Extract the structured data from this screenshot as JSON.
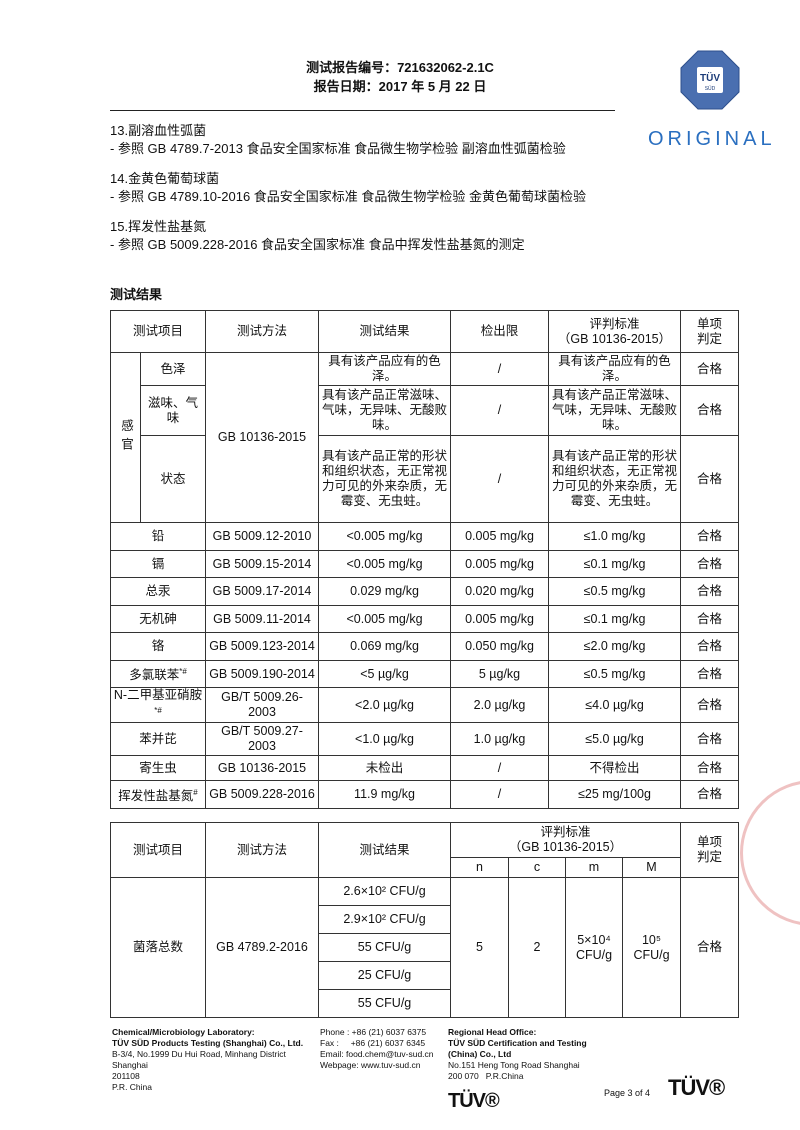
{
  "header": {
    "report_no_label": "测试报告编号：",
    "report_no": "721632062-2.1C",
    "date_label": "报告日期：",
    "date": "2017 年 5 月 22 日"
  },
  "logo": {
    "text_top": "TÜV",
    "text_bottom": "SÜD",
    "original": "ORIGINAL",
    "color": "#2a6fc0"
  },
  "methods": [
    {
      "title": "13.副溶血性弧菌",
      "ref": "- 参照 GB 4789.7-2013 食品安全国家标准 食品微生物学检验 副溶血性弧菌检验"
    },
    {
      "title": "14.金黄色葡萄球菌",
      "ref": "- 参照 GB 4789.10-2016 食品安全国家标准 食品微生物学检验 金黄色葡萄球菌检验"
    },
    {
      "title": "15.挥发性盐基氮",
      "ref": "- 参照 GB 5009.228-2016 食品安全国家标准 食品中挥发性盐基氮的测定"
    }
  ],
  "results_title": "测试结果",
  "table1": {
    "headers": [
      "测试项目",
      "测试方法",
      "测试结果",
      "检出限",
      "评判标准\n（GB 10136-2015）",
      "单项\n判定"
    ],
    "sensory": {
      "group": "感官",
      "method": "GB 10136-2015",
      "rows": [
        {
          "item": "色泽",
          "result": "具有该产品应有的色泽。",
          "limit": "/",
          "standard": "具有该产品应有的色泽。",
          "verdict": "合格"
        },
        {
          "item": "滋味、气味",
          "result": "具有该产品正常滋味、气味，无异味、无酸败味。",
          "limit": "/",
          "standard": "具有该产品正常滋味、气味，无异味、无酸败味。",
          "verdict": "合格"
        },
        {
          "item": "状态",
          "result": "具有该产品正常的形状和组织状态，无正常视力可见的外来杂质，无霉变、无虫蛀。",
          "limit": "/",
          "standard": "具有该产品正常的形状和组织状态，无正常视力可见的外来杂质，无霉变、无虫蛀。",
          "verdict": "合格"
        }
      ]
    },
    "rows": [
      {
        "item": "铅",
        "sup": "",
        "method": "GB 5009.12-2010",
        "result": "<0.005 mg/kg",
        "limit": "0.005 mg/kg",
        "standard": "≤1.0 mg/kg",
        "verdict": "合格"
      },
      {
        "item": "镉",
        "sup": "",
        "method": "GB 5009.15-2014",
        "result": "<0.005 mg/kg",
        "limit": "0.005 mg/kg",
        "standard": "≤0.1 mg/kg",
        "verdict": "合格"
      },
      {
        "item": "总汞",
        "sup": "",
        "method": "GB 5009.17-2014",
        "result": "0.029 mg/kg",
        "limit": "0.020 mg/kg",
        "standard": "≤0.5 mg/kg",
        "verdict": "合格"
      },
      {
        "item": "无机砷",
        "sup": "",
        "method": "GB 5009.11-2014",
        "result": "<0.005 mg/kg",
        "limit": "0.005 mg/kg",
        "standard": "≤0.1 mg/kg",
        "verdict": "合格"
      },
      {
        "item": "铬",
        "sup": "",
        "method": "GB 5009.123-2014",
        "result": "0.069 mg/kg",
        "limit": "0.050 mg/kg",
        "standard": "≤2.0 mg/kg",
        "verdict": "合格"
      },
      {
        "item": "多氯联苯",
        "sup": "*#",
        "method": "GB 5009.190-2014",
        "result": "<5 µg/kg",
        "limit": "5 µg/kg",
        "standard": "≤0.5 mg/kg",
        "verdict": "合格"
      },
      {
        "item": "N-二甲基亚硝胺",
        "sup": "*#",
        "method": "GB/T 5009.26-2003",
        "result": "<2.0 µg/kg",
        "limit": "2.0 µg/kg",
        "standard": "≤4.0 µg/kg",
        "verdict": "合格"
      },
      {
        "item": "苯并芘",
        "sup": "",
        "method": "GB/T 5009.27-2003",
        "result": "<1.0 µg/kg",
        "limit": "1.0 µg/kg",
        "standard": "≤5.0 µg/kg",
        "verdict": "合格"
      },
      {
        "item": "寄生虫",
        "sup": "",
        "method": "GB 10136-2015",
        "result": "未检出",
        "limit": "/",
        "standard": "不得检出",
        "verdict": "合格"
      },
      {
        "item": "挥发性盐基氮",
        "sup": "#",
        "method": "GB 5009.228-2016",
        "result": "11.9 mg/kg",
        "limit": "/",
        "standard": "≤25 mg/100g",
        "verdict": "合格"
      }
    ]
  },
  "table2": {
    "headers": {
      "item": "测试项目",
      "method": "测试方法",
      "result": "测试结果",
      "standard": "评判标准\n（GB 10136-2015）",
      "verdict": "单项\n判定",
      "n": "n",
      "c": "c",
      "m": "m",
      "M": "M"
    },
    "item": "菌落总数",
    "method": "GB 4789.2-2016",
    "results": [
      "2.6×10² CFU/g",
      "2.9×10² CFU/g",
      "55 CFU/g",
      "25 CFU/g",
      "55 CFU/g"
    ],
    "n": "5",
    "c": "2",
    "m": "5×10⁴\nCFU/g",
    "M": "10⁵\nCFU/g",
    "verdict": "合格"
  },
  "footer": {
    "lab": [
      "Chemical/Microbiology Laboratory:",
      "TÜV SÜD  Products Testing (Shanghai) Co., Ltd.",
      "B-3/4, No.1999 Du Hui Road, Minhang District",
      "Shanghai",
      "201108",
      "P.R. China"
    ],
    "contact": [
      "Phone : +86 (21) 6037 6375",
      "Fax :     +86 (21) 6037 6345",
      "Email: food.chem@tuv-sud.cn",
      "Webpage: www.tuv-sud.cn"
    ],
    "office": [
      "Regional Head Office:",
      "TÜV SÜD Certification and Testing",
      "(China) Co., Ltd",
      "No.151 Heng Tong Road Shanghai",
      "200 070   P.R.China"
    ],
    "brand": "TÜV®",
    "page": "Page 3 of 4"
  }
}
